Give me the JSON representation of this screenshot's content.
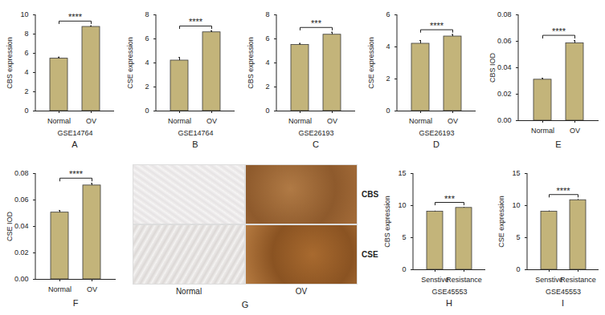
{
  "chart_data": [
    {
      "type": "bar",
      "panel_label": "A",
      "y_label": "CBS expression",
      "x_label": "GSE14764",
      "categories": [
        "Normal",
        "OV"
      ],
      "values": [
        5.45,
        8.75
      ],
      "errors": [
        0.15,
        0.1
      ],
      "significance": "****",
      "color": "#c3b47a",
      "ylim": [
        0,
        10
      ],
      "yticks": [
        0,
        2,
        4,
        6,
        8,
        10
      ]
    },
    {
      "type": "bar",
      "panel_label": "B",
      "y_label": "CSE expression",
      "x_label": "GSE14764",
      "categories": [
        "Normal",
        "OV"
      ],
      "values": [
        4.2,
        6.55
      ],
      "errors": [
        0.25,
        0.12
      ],
      "significance": "****",
      "color": "#c3b47a",
      "ylim": [
        0,
        8
      ],
      "yticks": [
        0,
        2,
        4,
        6,
        8
      ]
    },
    {
      "type": "bar",
      "panel_label": "C",
      "y_label": "CBS expression",
      "x_label": "GSE26193",
      "categories": [
        "Normal",
        "OV"
      ],
      "values": [
        5.5,
        6.35
      ],
      "errors": [
        0.12,
        0.2
      ],
      "significance": "***",
      "color": "#c3b47a",
      "ylim": [
        0,
        8
      ],
      "yticks": [
        0,
        2,
        4,
        6,
        8
      ]
    },
    {
      "type": "bar",
      "panel_label": "D",
      "y_label": "CSE expression",
      "x_label": "GSE26193",
      "categories": [
        "Normal",
        "OV"
      ],
      "values": [
        4.2,
        4.65
      ],
      "errors": [
        0.2,
        0.12
      ],
      "significance": "****",
      "color": "#c3b47a",
      "ylim": [
        0,
        6
      ],
      "yticks": [
        0,
        2,
        4,
        6
      ]
    },
    {
      "type": "bar",
      "panel_label": "E",
      "y_label": "CBS IOD",
      "categories": [
        "Normal",
        "OV"
      ],
      "values": [
        0.031,
        0.0585
      ],
      "errors": [
        0.001,
        0.002
      ],
      "significance": "****",
      "color": "#c3b47a",
      "ylim": [
        0,
        0.08
      ],
      "yticks": [
        {
          "value": 0,
          "label": "0.00"
        },
        {
          "value": 0.02,
          "label": "0.02"
        },
        {
          "value": 0.04,
          "label": "0.04"
        },
        {
          "value": 0.06,
          "label": "0.06"
        },
        {
          "value": 0.08,
          "label": "0.08"
        }
      ]
    },
    {
      "type": "bar",
      "panel_label": "F",
      "y_label": "CSE IOD",
      "categories": [
        "Normal",
        "OV"
      ],
      "values": [
        0.0505,
        0.071
      ],
      "errors": [
        0.0015,
        0.0015
      ],
      "significance": "****",
      "color": "#c3b47a",
      "ylim": [
        0,
        0.08
      ],
      "yticks": [
        {
          "value": 0,
          "label": "0.00"
        },
        {
          "value": 0.02,
          "label": "0.02"
        },
        {
          "value": 0.04,
          "label": "0.04"
        },
        {
          "value": 0.06,
          "label": "0.06"
        },
        {
          "value": 0.08,
          "label": "0.08"
        }
      ]
    },
    {
      "type": "bar",
      "panel_label": "H",
      "y_label": "CBS expression",
      "x_label": "GSE45553",
      "categories": [
        "Senstive",
        "Resistance"
      ],
      "values": [
        9.05,
        9.65
      ],
      "errors": [
        0.1,
        0.1
      ],
      "significance": "***",
      "color": "#c3b47a",
      "ylim": [
        0,
        15
      ],
      "yticks": [
        0,
        5,
        10,
        15
      ]
    },
    {
      "type": "bar",
      "panel_label": "I",
      "y_label": "CSE expression",
      "x_label": "GSE45553",
      "categories": [
        "Senstive",
        "Resistance"
      ],
      "values": [
        9.05,
        10.85
      ],
      "errors": [
        0.12,
        0.12
      ],
      "significance": "****",
      "color": "#c3b47a",
      "ylim": [
        0,
        15
      ],
      "yticks": [
        0,
        5,
        10,
        15
      ]
    }
  ],
  "image_panel": {
    "panel_label": "G",
    "row_labels": [
      "CBS",
      "CSE"
    ],
    "column_labels": [
      "Normal",
      "OV"
    ]
  }
}
